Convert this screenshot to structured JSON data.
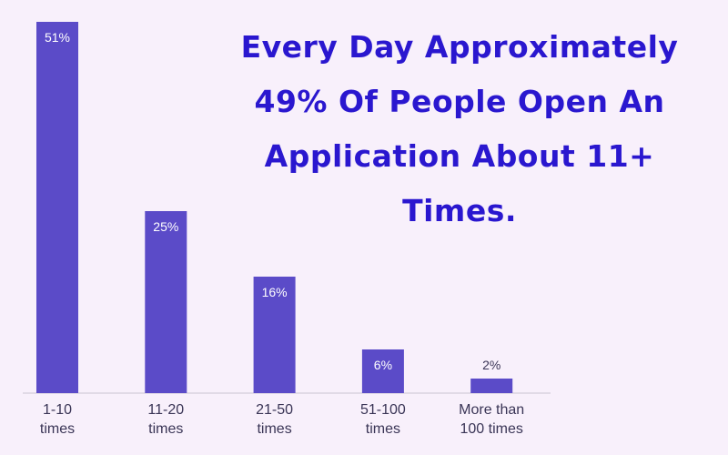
{
  "chart_data": {
    "type": "bar",
    "title": "Every Day Approximately\n49% Of People Open An\nApplication About 11+\nTimes.",
    "categories": [
      "1-10\ntimes",
      "11-20\ntimes",
      "21-50\ntimes",
      "51-100\ntimes",
      "More than\n100 times"
    ],
    "values": [
      51,
      25,
      16,
      6,
      2
    ],
    "value_labels": [
      "51%",
      "25%",
      "16%",
      "6%",
      "2%"
    ],
    "color": "#5b4bc8"
  }
}
